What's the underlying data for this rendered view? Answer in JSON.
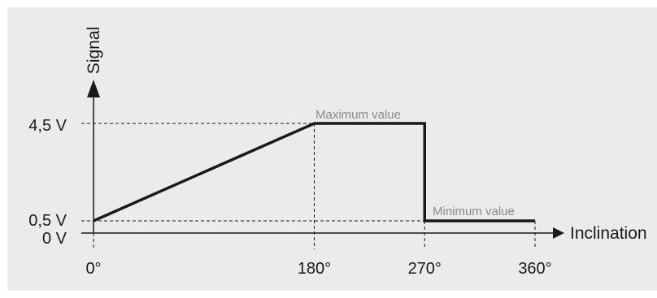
{
  "chart_data": {
    "type": "line",
    "xlabel": "Inclination",
    "ylabel": "Signal",
    "x_ticks": [
      "0°",
      "180°",
      "270°",
      "360°"
    ],
    "y_ticks": [
      "0 V",
      "0,5 V",
      "4,5 V"
    ],
    "xlim": [
      0,
      360
    ],
    "ylim": [
      0,
      4.5
    ],
    "series": [
      {
        "x": [
          0,
          180,
          270,
          270,
          360
        ],
        "y": [
          0.5,
          4.5,
          4.5,
          0.5,
          0.5
        ]
      }
    ],
    "annotations": {
      "max": "Maximum value",
      "min": "Minimum value"
    },
    "colors": {
      "line": "#1a1a1a",
      "annotation": "#8a8a8a",
      "background": "#ebebeb"
    }
  }
}
